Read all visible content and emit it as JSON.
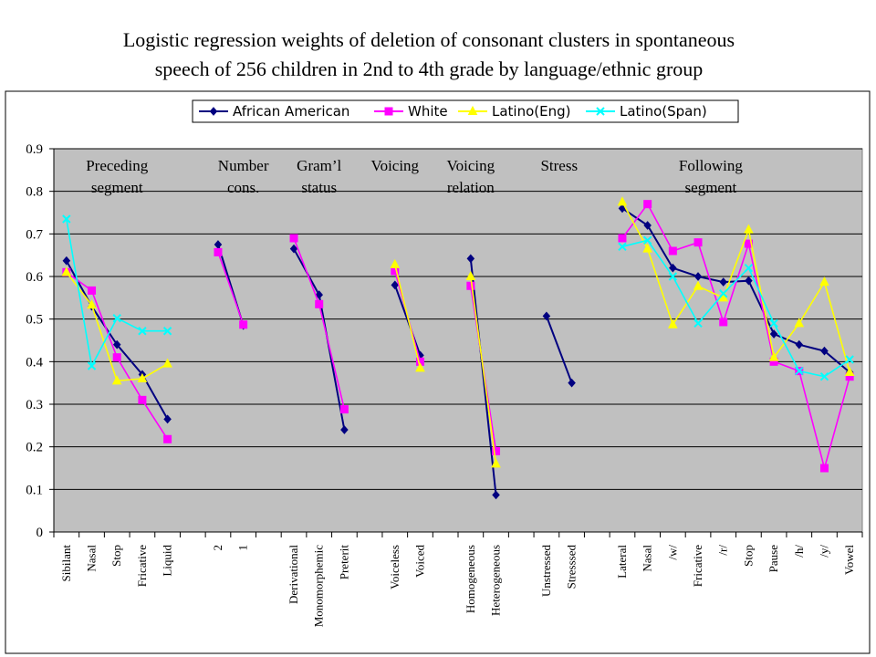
{
  "title_line1": "Logistic regression weights of deletion of consonant clusters in spontaneous",
  "title_line2": "speech of 256 children in 2nd to 4th grade by language/ethnic group",
  "chart_data": {
    "type": "line",
    "ylim": [
      0,
      0.9
    ],
    "yticks": [
      "0",
      "0.1",
      "0.2",
      "0.3",
      "0.4",
      "0.5",
      "0.6",
      "0.7",
      "0.8",
      "0.9"
    ],
    "grid": true,
    "legend_position": "top",
    "plot_background": "#c0c0c0",
    "categories": [
      "Sibilant",
      "Nasal",
      "Stop",
      "Fricative",
      "Liquid",
      "",
      "2",
      "1",
      "",
      "Derivational",
      "Monomorphemic",
      "Preterit",
      "",
      "Voiceless",
      "Voiced",
      "",
      "Homogeneous",
      "Heterogeneous",
      "",
      "Unstressed",
      "Stresssed",
      "",
      "Lateral",
      "Nasal",
      "/w/",
      "Fricative",
      "/r/",
      "Stop",
      "Pause",
      "/h/",
      "/y/",
      "Vowel"
    ],
    "group_labels": [
      {
        "line1": "Preceding",
        "line2": "segment",
        "at": 2
      },
      {
        "line1": "Number",
        "line2": "cons.",
        "at": 7
      },
      {
        "line1": "Gram’l",
        "line2": "status",
        "at": 10
      },
      {
        "line1": "Voicing",
        "line2": "",
        "at": 13
      },
      {
        "line1": "Voicing",
        "line2": "relation",
        "at": 16
      },
      {
        "line1": "Stress",
        "line2": "",
        "at": 19.5
      },
      {
        "line1": "Following",
        "line2": "segment",
        "at": 25.5
      }
    ],
    "series": [
      {
        "name": "African American",
        "color": "#000080",
        "marker": "diamond",
        "values": [
          0.637,
          0.53,
          0.44,
          0.37,
          0.265,
          null,
          0.675,
          0.485,
          null,
          0.665,
          0.557,
          0.24,
          null,
          0.58,
          0.415,
          null,
          0.642,
          0.087,
          null,
          0.507,
          0.35,
          null,
          0.76,
          0.72,
          0.62,
          0.6,
          0.587,
          0.59,
          0.465,
          0.44,
          0.425,
          0.375
        ]
      },
      {
        "name": "White",
        "color": "#ff00ff",
        "marker": "square",
        "values": [
          0.61,
          0.567,
          0.41,
          0.31,
          0.218,
          null,
          0.657,
          0.487,
          null,
          0.69,
          0.535,
          0.288,
          null,
          0.613,
          0.4,
          null,
          0.578,
          0.19,
          null,
          null,
          null,
          null,
          0.69,
          0.77,
          0.66,
          0.68,
          0.493,
          0.677,
          0.4,
          0.378,
          0.15,
          0.365
        ]
      },
      {
        "name": "Latino(Eng)",
        "color": "#ffff00",
        "marker": "triangle",
        "values": [
          0.61,
          0.533,
          0.355,
          0.36,
          0.395,
          null,
          null,
          null,
          null,
          null,
          null,
          null,
          null,
          0.628,
          0.385,
          null,
          0.6,
          0.16,
          null,
          null,
          null,
          null,
          0.775,
          0.665,
          0.487,
          0.577,
          0.55,
          0.71,
          0.41,
          0.49,
          0.587,
          0.375
        ]
      },
      {
        "name": "Latino(Span)",
        "color": "#00ffff",
        "marker": "x",
        "values": [
          0.735,
          0.39,
          0.502,
          0.472,
          0.472,
          null,
          null,
          null,
          null,
          null,
          null,
          null,
          null,
          null,
          null,
          null,
          null,
          null,
          null,
          null,
          null,
          null,
          0.67,
          0.685,
          0.6,
          0.49,
          0.56,
          0.62,
          0.49,
          0.378,
          0.365,
          0.405
        ]
      }
    ]
  }
}
